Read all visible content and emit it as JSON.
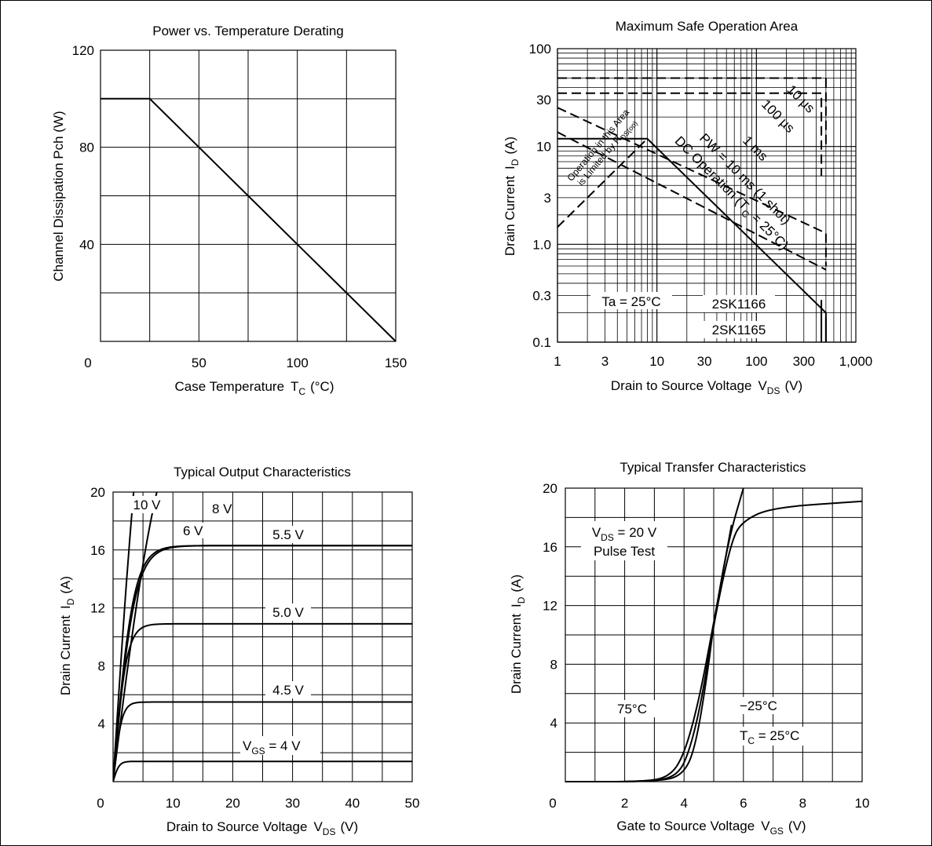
{
  "chart_data": [
    {
      "id": "power_derating",
      "type": "line",
      "title": "Power vs. Temperature Derating",
      "xlabel": "Case Temperature",
      "xlabel_sub": "C",
      "xlabel_prefix": "T",
      "xlabel_unit": "(°C)",
      "ylabel": "Channel Dissipation  Pch  (W)",
      "xlim": [
        0,
        150
      ],
      "ylim": [
        0,
        120
      ],
      "xticks": [
        0,
        50,
        100,
        150
      ],
      "yticks": [
        40,
        80,
        120
      ],
      "x_grid_step": 25,
      "y_grid_step": 20,
      "series": [
        {
          "x": [
            0,
            25,
            150
          ],
          "y": [
            100,
            100,
            0
          ]
        }
      ]
    },
    {
      "id": "safe_operation_area",
      "type": "line",
      "scale": "log-log",
      "title": "Maximum Safe Operation Area",
      "xlabel": "Drain to Source Voltage",
      "xlabel_prefix": "V",
      "xlabel_sub": "DS",
      "xlabel_unit": "(V)",
      "ylabel": "Drain Current",
      "ylabel_prefix": "I",
      "ylabel_sub": "D",
      "ylabel_unit": "(A)",
      "xlim": [
        1,
        1000
      ],
      "ylim": [
        0.1,
        100
      ],
      "xticks": [
        {
          "v": 1,
          "label": "1"
        },
        {
          "v": 3,
          "label": "3"
        },
        {
          "v": 10,
          "label": "10"
        },
        {
          "v": 30,
          "label": "30"
        },
        {
          "v": 100,
          "label": "100"
        },
        {
          "v": 300,
          "label": "300"
        },
        {
          "v": 1000,
          "label": "1,000"
        }
      ],
      "yticks": [
        {
          "v": 0.1,
          "label": "0.1"
        },
        {
          "v": 0.3,
          "label": "0.3"
        },
        {
          "v": 1,
          "label": "1.0"
        },
        {
          "v": 3,
          "label": "3"
        },
        {
          "v": 10,
          "label": "10"
        },
        {
          "v": 30,
          "label": "30"
        },
        {
          "v": 100,
          "label": "100"
        }
      ],
      "series": [
        {
          "name": "10 µs",
          "x": [
            1,
            500,
            500
          ],
          "y": [
            50,
            50,
            10
          ],
          "dash": true
        },
        {
          "name": "100 µs",
          "x": [
            1,
            450,
            450
          ],
          "y": [
            35,
            35,
            5
          ],
          "dash": true
        },
        {
          "name": "1 ms",
          "x": [
            1,
            500,
            500
          ],
          "y": [
            25,
            1.3,
            0.6
          ],
          "dash": true
        },
        {
          "name": "PW = 10 ms (1 shot)",
          "x": [
            1,
            500
          ],
          "y": [
            14,
            0.55
          ],
          "dash": true
        },
        {
          "name": "DC Operation (TC = 25°C)",
          "x": [
            1,
            8,
            500,
            500
          ],
          "y": [
            12,
            12,
            0.2,
            0.1
          ]
        },
        {
          "name": "RDS(on) limit",
          "x": [
            1,
            8
          ],
          "y": [
            1.5,
            12
          ],
          "dash": true
        },
        {
          "name": "2SK1166",
          "x": [
            450,
            450
          ],
          "y": [
            0.1,
            0.27
          ]
        },
        {
          "name": "2SK1165",
          "x": [
            500,
            500
          ],
          "y": [
            0.1,
            0.18
          ]
        }
      ],
      "annotations": [
        {
          "text": "10 µs"
        },
        {
          "text": "100 µs"
        },
        {
          "text": "1 ms"
        },
        {
          "text": "PW = 10 ms (1 shot)"
        },
        {
          "text": "DC Operation (T",
          "sub": "C",
          "tail": " = 25°C)"
        },
        {
          "text": "Operation in this Area"
        },
        {
          "text": "is Limited by R",
          "sub": "DS(on)"
        },
        {
          "text": "Ta = 25°C"
        },
        {
          "text": "2SK1166"
        },
        {
          "text": "2SK1165"
        }
      ]
    },
    {
      "id": "output_characteristics",
      "type": "line",
      "title": "Typical Output Characteristics",
      "xlabel": "Drain to Source Voltage",
      "xlabel_prefix": "V",
      "xlabel_sub": "DS",
      "xlabel_unit": "(V)",
      "ylabel": "Drain Current",
      "ylabel_prefix": "I",
      "ylabel_sub": "D",
      "ylabel_unit": "(A)",
      "xlim": [
        0,
        50
      ],
      "ylim": [
        0,
        20
      ],
      "xticks": [
        0,
        10,
        20,
        30,
        40,
        50
      ],
      "yticks": [
        4,
        8,
        12,
        16,
        20
      ],
      "x_grid_step": 5,
      "y_grid_step": 2,
      "series": [
        {
          "name": "10 V",
          "sat": 40,
          "k": 0.16
        },
        {
          "name": "8 V",
          "sat": 30,
          "k": 0.11
        },
        {
          "name": "6 V",
          "sat": 16.3,
          "k": 0.28
        },
        {
          "name": "5.5 V",
          "sat": 16.3,
          "k": 0.3
        },
        {
          "name": "5.0 V",
          "sat": 10.9,
          "k": 0.45
        },
        {
          "name": "4.5 V",
          "sat": 5.5,
          "k": 0.7
        },
        {
          "name": "VGS = 4 V",
          "sat": 1.4,
          "k": 1.0
        }
      ],
      "labels": {
        "v10": "10 V",
        "v8": "8 V",
        "v6": "6 V",
        "v55": "5.5 V",
        "v50": "5.0 V",
        "v45": "4.5 V",
        "vgs_prefix": "V",
        "vgs_sub": "GS",
        "vgs_tail": " = 4 V"
      }
    },
    {
      "id": "transfer_characteristics",
      "type": "line",
      "title": "Typical Transfer Characteristics",
      "xlabel": "Gate to Source Voltage",
      "xlabel_prefix": "V",
      "xlabel_sub": "GS",
      "xlabel_unit": "(V)",
      "ylabel": "Drain Current",
      "ylabel_prefix": "I",
      "ylabel_sub": "D",
      "ylabel_unit": "(A)",
      "xlim": [
        0,
        10
      ],
      "ylim": [
        0,
        20
      ],
      "xticks": [
        0,
        2,
        4,
        6,
        8,
        10
      ],
      "yticks": [
        4,
        8,
        12,
        16,
        20
      ],
      "x_grid_step": 1,
      "y_grid_step": 2,
      "series": [
        {
          "name": "75°C",
          "x": [
            0,
            2.6,
            3.5,
            4.0,
            4.5,
            5.0,
            5.5,
            6.0
          ],
          "y": [
            0,
            0,
            0.3,
            1.8,
            5.5,
            10.8,
            16.5,
            20
          ]
        },
        {
          "name": "−25°C",
          "x": [
            0,
            2.9,
            3.8,
            4.2,
            4.6,
            5.0,
            5.6,
            6.0,
            7.0,
            10
          ],
          "y": [
            0,
            0,
            0.4,
            2.2,
            5.6,
            10.8,
            16.5,
            17.8,
            18.7,
            19.1
          ]
        },
        {
          "name": "TC = 25°C",
          "x": [
            0,
            3.2,
            4.0,
            4.4,
            4.8,
            5.0,
            5.6
          ],
          "y": [
            0,
            0,
            0.5,
            2.5,
            7.5,
            10.8,
            17.5
          ]
        }
      ],
      "labels": {
        "vds_prefix": "V",
        "vds_sub": "DS",
        "vds_tail": " = 20 V",
        "pulse": "Pulse Test",
        "t75": "75°C",
        "tm25": "−25°C",
        "tc_prefix": "T",
        "tc_sub": "C",
        "tc_tail": " = 25°C"
      }
    }
  ]
}
